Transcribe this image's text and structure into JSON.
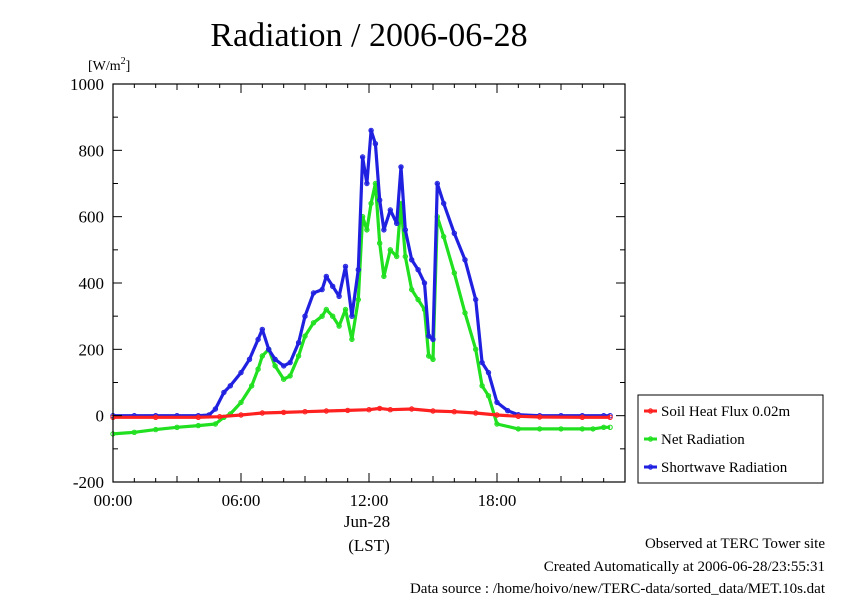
{
  "chart_data": {
    "type": "line",
    "title": "Radiation / 2006-06-28",
    "ylabel_unit": "[W/m",
    "ylabel_unit_sup": "2",
    "ylabel_unit_close": "]",
    "ylim": [
      -200,
      1000
    ],
    "yticks": [
      {
        "value": -200,
        "label": "-200"
      },
      {
        "value": 0,
        "label": "0"
      },
      {
        "value": 200,
        "label": "200"
      },
      {
        "value": 400,
        "label": "400"
      },
      {
        "value": 600,
        "label": "600"
      },
      {
        "value": 800,
        "label": "800"
      },
      {
        "value": 1000,
        "label": "1000"
      }
    ],
    "xlim": [
      0,
      24
    ],
    "xticks": [
      {
        "value": 0,
        "label": "00:00"
      },
      {
        "value": 6,
        "label": "06:00"
      },
      {
        "value": 12,
        "label": "12:00"
      },
      {
        "value": 18,
        "label": "18:00"
      }
    ],
    "date_label": "Jun-28",
    "tz_label": "(LST)",
    "grid": false,
    "legend_position": "right",
    "x_unit": "hour of day",
    "series": [
      {
        "name": "Soil Heat Flux 0.02m",
        "color": "#ff2020",
        "x": [
          0,
          2,
          4,
          5,
          6,
          7,
          8,
          9,
          10,
          11,
          12,
          12.5,
          13,
          14,
          15,
          16,
          17,
          18,
          19,
          20,
          22,
          23.3
        ],
        "y": [
          -5,
          -5,
          -5,
          -3,
          2,
          8,
          10,
          12,
          14,
          16,
          18,
          22,
          18,
          20,
          14,
          12,
          8,
          2,
          -2,
          -4,
          -5,
          -5
        ]
      },
      {
        "name": "Net Radiation",
        "color": "#20e020",
        "x": [
          0,
          1,
          2,
          3,
          4,
          4.8,
          5.2,
          5.5,
          6,
          6.5,
          6.8,
          7,
          7.3,
          7.6,
          8,
          8.3,
          8.7,
          9,
          9.4,
          9.8,
          10,
          10.3,
          10.6,
          10.9,
          11.2,
          11.5,
          11.7,
          11.9,
          12.1,
          12.3,
          12.5,
          12.7,
          13,
          13.3,
          13.5,
          13.7,
          14,
          14.3,
          14.6,
          14.8,
          15,
          15.2,
          15.5,
          16,
          16.5,
          17,
          17.3,
          17.6,
          18,
          19,
          20,
          21,
          22,
          22.5,
          23,
          23.3
        ],
        "y": [
          -55,
          -50,
          -42,
          -35,
          -30,
          -25,
          -5,
          5,
          40,
          90,
          140,
          180,
          200,
          150,
          110,
          120,
          180,
          240,
          280,
          300,
          320,
          300,
          270,
          320,
          230,
          350,
          600,
          560,
          640,
          700,
          520,
          420,
          500,
          480,
          640,
          480,
          380,
          350,
          320,
          180,
          170,
          600,
          540,
          430,
          310,
          200,
          90,
          60,
          -25,
          -40,
          -40,
          -40,
          -40,
          -40,
          -35,
          -35
        ]
      },
      {
        "name": "Shortwave Radiation",
        "color": "#2020e0",
        "x": [
          0,
          1,
          2,
          3,
          4,
          4.5,
          4.8,
          5.2,
          5.5,
          6,
          6.4,
          6.8,
          7,
          7.3,
          7.6,
          8,
          8.3,
          8.7,
          9,
          9.4,
          9.8,
          10,
          10.3,
          10.6,
          10.9,
          11.2,
          11.5,
          11.7,
          11.9,
          12.1,
          12.3,
          12.5,
          12.7,
          13,
          13.3,
          13.5,
          13.7,
          14,
          14.3,
          14.6,
          14.8,
          15,
          15.2,
          15.5,
          16,
          16.5,
          17,
          17.3,
          17.6,
          18,
          18.5,
          19,
          20,
          21,
          22,
          23,
          23.3
        ],
        "y": [
          0,
          0,
          0,
          0,
          0,
          2,
          20,
          70,
          90,
          130,
          170,
          230,
          260,
          200,
          170,
          150,
          160,
          220,
          300,
          370,
          380,
          420,
          390,
          360,
          450,
          300,
          440,
          780,
          700,
          860,
          820,
          650,
          560,
          620,
          580,
          750,
          560,
          470,
          440,
          400,
          240,
          230,
          700,
          640,
          550,
          470,
          350,
          160,
          130,
          40,
          15,
          3,
          0,
          0,
          0,
          0,
          0
        ]
      }
    ]
  },
  "footer": {
    "observed": "Observed at TERC Tower site",
    "created": "Created Automatically at 2006-06-28/23:55:31",
    "source": "Data source : /home/hoivo/new/TERC-data/sorted_data/MET.10s.dat"
  }
}
